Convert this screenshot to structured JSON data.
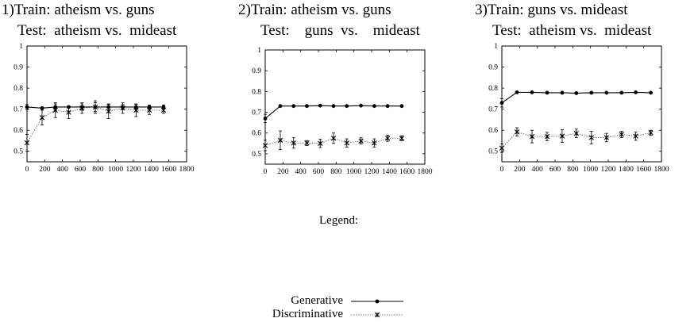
{
  "chart_data": [
    {
      "type": "line",
      "title": [
        "1)Train: atheism vs. guns",
        "Test:  atheism vs.  mideast"
      ],
      "xlim": [
        0,
        1800
      ],
      "ylim": [
        0.45,
        1
      ],
      "xticks": [
        0,
        200,
        400,
        600,
        800,
        1000,
        1200,
        1400,
        1600,
        1800
      ],
      "yticks": [
        0.5,
        0.6,
        0.7,
        0.8,
        0.9,
        1
      ],
      "grid": false,
      "series": [
        {
          "name": "Generative",
          "x": [
            0,
            170,
            320,
            470,
            620,
            770,
            920,
            1080,
            1230,
            1380,
            1540
          ],
          "y": [
            0.71,
            0.705,
            0.71,
            0.71,
            0.71,
            0.71,
            0.71,
            0.71,
            0.71,
            0.71,
            0.71
          ],
          "err": [
            0.012,
            0,
            0.015,
            0,
            0.015,
            0.02,
            0.012,
            0.012,
            0.012,
            0.01,
            0.01
          ]
        },
        {
          "name": "Discriminative",
          "x": [
            0,
            170,
            320,
            470,
            620,
            770,
            920,
            1080,
            1230,
            1380,
            1540
          ],
          "y": [
            0.54,
            0.66,
            0.695,
            0.685,
            0.705,
            0.71,
            0.69,
            0.705,
            0.695,
            0.695,
            0.695
          ],
          "err": [
            0.04,
            0.035,
            0.035,
            0.03,
            0.025,
            0.03,
            0.035,
            0.025,
            0.03,
            0.02,
            0.015
          ]
        }
      ]
    },
    {
      "type": "line",
      "title": [
        "2)Train: atheism vs. guns",
        "Test:    guns  vs.    mideast"
      ],
      "xlim": [
        0,
        1800
      ],
      "ylim": [
        0.45,
        1
      ],
      "xticks": [
        0,
        200,
        400,
        600,
        800,
        1000,
        1200,
        1400,
        1600,
        1800
      ],
      "yticks": [
        0.5,
        0.6,
        0.7,
        0.8,
        0.9,
        1
      ],
      "grid": false,
      "series": [
        {
          "name": "Generative",
          "x": [
            0,
            170,
            320,
            470,
            620,
            770,
            920,
            1080,
            1230,
            1380,
            1540
          ],
          "y": [
            0.67,
            0.73,
            0.73,
            0.73,
            0.732,
            0.73,
            0.73,
            0.732,
            0.73,
            0.73,
            0.73
          ],
          "err": [
            0.02,
            0,
            0,
            0,
            0,
            0,
            0,
            0,
            0,
            0,
            0
          ]
        },
        {
          "name": "Discriminative",
          "x": [
            0,
            170,
            320,
            470,
            620,
            770,
            920,
            1080,
            1230,
            1380,
            1540
          ],
          "y": [
            0.54,
            0.565,
            0.552,
            0.552,
            0.55,
            0.575,
            0.552,
            0.562,
            0.552,
            0.575,
            0.575
          ],
          "err": [
            0.025,
            0.045,
            0.025,
            0.012,
            0.02,
            0.025,
            0.02,
            0.015,
            0.02,
            0.015,
            0.012
          ]
        }
      ]
    },
    {
      "type": "line",
      "title": [
        "3)Train: guns vs. mideast",
        "Test:  atheism vs.  mideast"
      ],
      "xlim": [
        0,
        1800
      ],
      "ylim": [
        0.45,
        1
      ],
      "xticks": [
        0,
        200,
        400,
        600,
        800,
        1000,
        1200,
        1400,
        1600,
        1800
      ],
      "yticks": [
        0.5,
        0.6,
        0.7,
        0.8,
        0.9,
        1
      ],
      "grid": false,
      "series": [
        {
          "name": "Generative",
          "x": [
            0,
            170,
            340,
            510,
            680,
            840,
            1010,
            1180,
            1350,
            1510,
            1680
          ],
          "y": [
            0.73,
            0.78,
            0.78,
            0.778,
            0.778,
            0.776,
            0.778,
            0.778,
            0.778,
            0.78,
            0.778
          ],
          "err": [
            0.02,
            0,
            0,
            0,
            0,
            0,
            0,
            0,
            0,
            0,
            0
          ]
        },
        {
          "name": "Discriminative",
          "x": [
            0,
            170,
            340,
            510,
            680,
            840,
            1010,
            1180,
            1350,
            1510,
            1680
          ],
          "y": [
            0.515,
            0.592,
            0.57,
            0.57,
            0.572,
            0.585,
            0.565,
            0.565,
            0.58,
            0.572,
            0.588
          ],
          "err": [
            0.02,
            0.02,
            0.03,
            0.02,
            0.03,
            0.02,
            0.03,
            0.02,
            0.015,
            0.02,
            0.012
          ]
        }
      ]
    }
  ],
  "legend": {
    "heading": "Legend:",
    "items": [
      {
        "label": "Generative",
        "style": "solid-circle"
      },
      {
        "label": "Discriminative",
        "style": "dotted-star"
      }
    ]
  }
}
